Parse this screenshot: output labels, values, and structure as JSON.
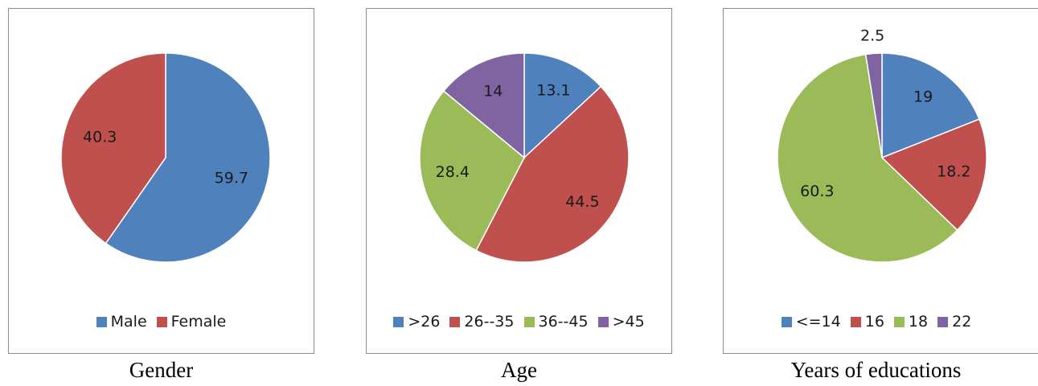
{
  "chart_data": [
    {
      "type": "pie",
      "title": "Gender",
      "categories": [
        "Male",
        "Female"
      ],
      "values": [
        59.7,
        40.3
      ],
      "colors": [
        "#4f81bd",
        "#c0504d"
      ],
      "legend_position": "bottom"
    },
    {
      "type": "pie",
      "title": "Age",
      "categories": [
        ">26",
        "26--35",
        "36--45",
        ">45"
      ],
      "values": [
        13.1,
        44.5,
        28.4,
        14
      ],
      "colors": [
        "#4f81bd",
        "#c0504d",
        "#9bbb59",
        "#8064a2"
      ],
      "legend_position": "bottom"
    },
    {
      "type": "pie",
      "title": "Years of educations",
      "categories": [
        "<=14",
        "16",
        "18",
        "22"
      ],
      "values": [
        19,
        18.2,
        60.3,
        2.5
      ],
      "colors": [
        "#4f81bd",
        "#c0504d",
        "#9bbb59",
        "#8064a2"
      ],
      "legend_position": "bottom"
    }
  ]
}
